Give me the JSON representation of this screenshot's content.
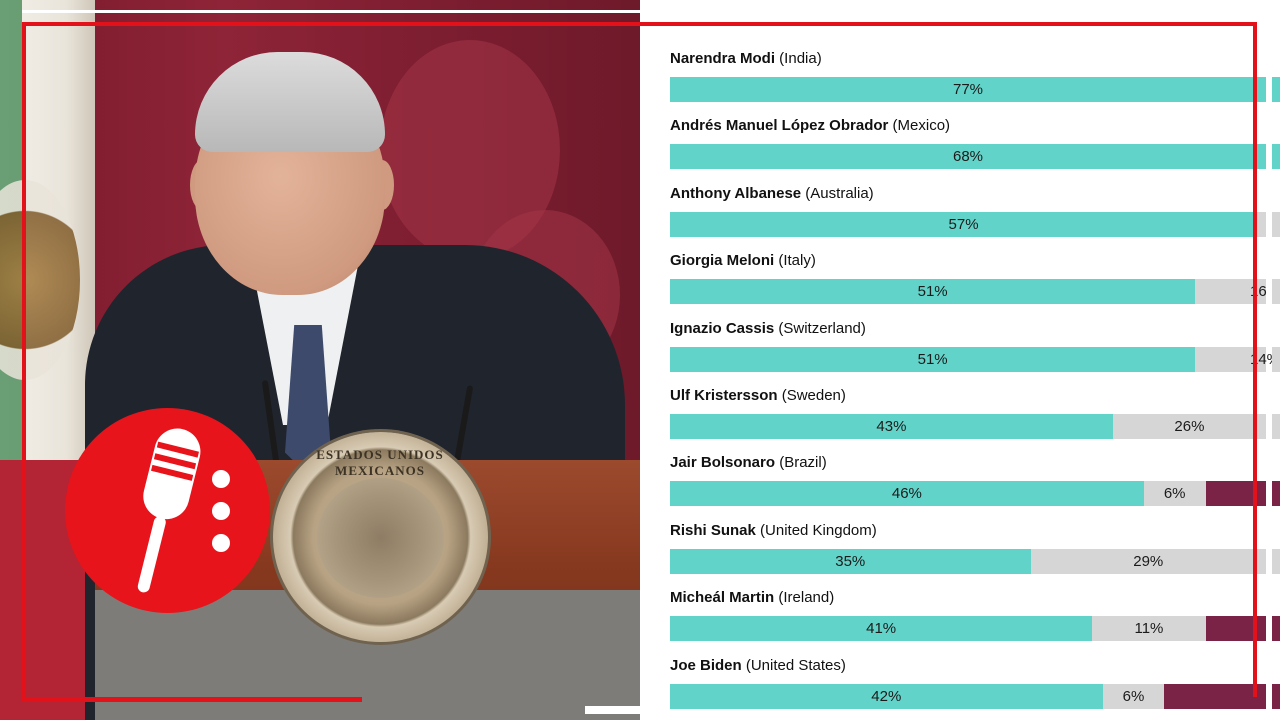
{
  "logo": {
    "icon": "microphone-icon",
    "color": "#e8141b"
  },
  "seal": {
    "text": "ESTADOS UNIDOS MEXICANOS"
  },
  "colors": {
    "approve": "#62d3c9",
    "neutral": "#d6d6d6",
    "disapprove": "#7b2347",
    "frame": "#e3121a"
  },
  "chart_data": {
    "type": "bar",
    "orientation": "horizontal",
    "stacked": true,
    "rows": [
      {
        "name": "Narendra Modi",
        "country": "(India)",
        "approve": 77,
        "approve_label": "77%",
        "neutral": null,
        "neutral_label": "",
        "disapprove_visible": false
      },
      {
        "name": "Andrés Manuel López Obrador",
        "country": "(Mexico)",
        "approve": 68,
        "approve_label": "68%",
        "neutral": null,
        "neutral_label": "",
        "disapprove_visible": false
      },
      {
        "name": "Anthony Albanese",
        "country": "(Australia)",
        "approve": 57,
        "approve_label": "57%",
        "neutral": null,
        "neutral_label": "",
        "disapprove_visible": false
      },
      {
        "name": "Giorgia Meloni",
        "country": "(Italy)",
        "approve": 51,
        "approve_label": "51%",
        "neutral": null,
        "neutral_label": "16",
        "disapprove_visible": false
      },
      {
        "name": "Ignazio Cassis",
        "country": "(Switzerland)",
        "approve": 51,
        "approve_label": "51%",
        "neutral": null,
        "neutral_label": "14%",
        "disapprove_visible": false
      },
      {
        "name": "Ulf Kristersson",
        "country": "(Sweden)",
        "approve": 43,
        "approve_label": "43%",
        "neutral": 26,
        "neutral_label": "26%",
        "disapprove_visible": false
      },
      {
        "name": "Jair Bolsonaro",
        "country": "(Brazil)",
        "approve": 46,
        "approve_label": "46%",
        "neutral": 6,
        "neutral_label": "6%",
        "disapprove_visible": true
      },
      {
        "name": "Rishi Sunak",
        "country": "(United Kingdom)",
        "approve": 35,
        "approve_label": "35%",
        "neutral": 29,
        "neutral_label": "29%",
        "disapprove_visible": false
      },
      {
        "name": "Micheál Martin",
        "country": "(Ireland)",
        "approve": 41,
        "approve_label": "41%",
        "neutral": 11,
        "neutral_label": "11%",
        "disapprove_visible": true
      },
      {
        "name": "Joe Biden",
        "country": "(United States)",
        "approve": 42,
        "approve_label": "42%",
        "neutral": 6,
        "neutral_label": "6%",
        "disapprove_visible": true
      }
    ]
  }
}
